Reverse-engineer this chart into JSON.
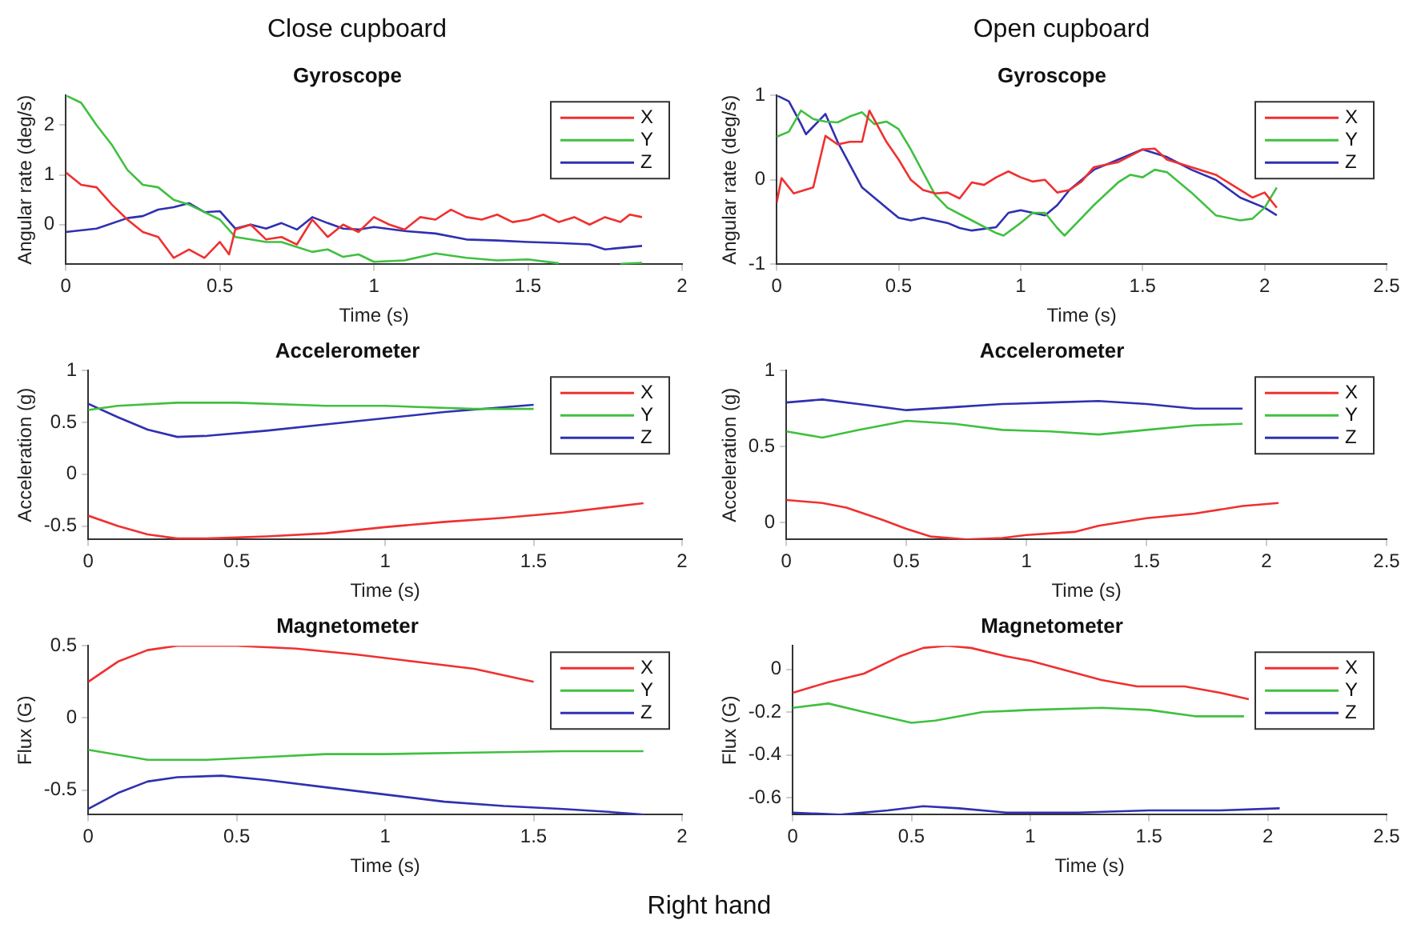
{
  "chart_data": [
    {
      "type": "line",
      "title": "Gyroscope",
      "xlabel": "Time (s)",
      "ylabel": "Angular rate (deg/s)",
      "annotations": [
        "Close cupboard"
      ],
      "xlim": [
        0,
        2
      ],
      "xticks": [
        0,
        0.5,
        1,
        1.5,
        2
      ],
      "ylim": [
        -0.8,
        2.6
      ],
      "yticks": [
        0,
        1,
        2
      ],
      "legend": "top right",
      "series": [
        {
          "name": "X",
          "color": "#f03030",
          "x": [
            0,
            0.05,
            0.1,
            0.15,
            0.2,
            0.25,
            0.3,
            0.35,
            0.4,
            0.45,
            0.5,
            0.53,
            0.55,
            0.6,
            0.65,
            0.7,
            0.75,
            0.8,
            0.85,
            0.9,
            0.95,
            1.0,
            1.05,
            1.1,
            1.15,
            1.2,
            1.25,
            1.3,
            1.35,
            1.4,
            1.45,
            1.5,
            1.55,
            1.6,
            1.65,
            1.7,
            1.75,
            1.8,
            1.83,
            1.87
          ],
          "values": [
            1.05,
            0.8,
            0.75,
            0.4,
            0.1,
            -0.15,
            -0.25,
            -0.67,
            -0.5,
            -0.67,
            -0.35,
            -0.6,
            -0.1,
            0,
            -0.3,
            -0.25,
            -0.4,
            0.1,
            -0.25,
            0,
            -0.15,
            0.15,
            0,
            -0.1,
            0.15,
            0.1,
            0.3,
            0.15,
            0.1,
            0.2,
            0.05,
            0.1,
            0.2,
            0.05,
            0.15,
            0,
            0.15,
            0.05,
            0.2,
            0.15
          ]
        },
        {
          "name": "Y",
          "color": "#40c040",
          "x": [
            0,
            0.05,
            0.1,
            0.15,
            0.2,
            0.25,
            0.3,
            0.35,
            0.4,
            0.45,
            0.5,
            0.55,
            0.6,
            0.65,
            0.7,
            0.75,
            0.8,
            0.85,
            0.9,
            0.95,
            1.0,
            1.1,
            1.2,
            1.3,
            1.4,
            1.5,
            1.6,
            1.7,
            1.8,
            1.87
          ],
          "values": [
            2.6,
            2.45,
            2.0,
            1.6,
            1.1,
            0.8,
            0.75,
            0.5,
            0.4,
            0.25,
            0.1,
            -0.25,
            -0.3,
            -0.35,
            -0.35,
            -0.45,
            -0.55,
            -0.5,
            -0.65,
            -0.6,
            -0.75,
            -0.72,
            -0.58,
            -0.67,
            -0.72,
            -0.7,
            -0.78,
            null,
            -0.79,
            -0.77
          ]
        },
        {
          "name": "Z",
          "color": "#3030b0",
          "x": [
            0,
            0.1,
            0.2,
            0.25,
            0.3,
            0.35,
            0.4,
            0.45,
            0.5,
            0.55,
            0.6,
            0.65,
            0.7,
            0.75,
            0.8,
            0.85,
            0.9,
            0.95,
            1.0,
            1.1,
            1.2,
            1.3,
            1.4,
            1.5,
            1.6,
            1.7,
            1.75,
            1.8,
            1.87
          ],
          "values": [
            -0.15,
            -0.08,
            0.13,
            0.17,
            0.3,
            0.35,
            0.43,
            0.25,
            0.27,
            -0.08,
            0,
            -0.08,
            0.03,
            -0.1,
            0.15,
            0.03,
            -0.08,
            -0.1,
            -0.05,
            -0.13,
            -0.18,
            -0.3,
            -0.32,
            -0.35,
            -0.37,
            -0.4,
            -0.5,
            -0.47,
            -0.43
          ]
        }
      ]
    },
    {
      "type": "line",
      "title": "Gyroscope",
      "xlabel": "Time (s)",
      "ylabel": "Angular rate (deg/s)",
      "annotations": [
        "Open cupboard"
      ],
      "xlim": [
        0,
        2.5
      ],
      "xticks": [
        0,
        0.5,
        1,
        1.5,
        2,
        2.5
      ],
      "ylim": [
        -1,
        1
      ],
      "yticks": [
        -1,
        0,
        1
      ],
      "legend": "top right",
      "series": [
        {
          "name": "X",
          "color": "#f03030",
          "x": [
            0,
            0.02,
            0.07,
            0.15,
            0.2,
            0.25,
            0.3,
            0.35,
            0.38,
            0.45,
            0.5,
            0.55,
            0.6,
            0.65,
            0.7,
            0.75,
            0.8,
            0.85,
            0.9,
            0.95,
            1.0,
            1.05,
            1.1,
            1.15,
            1.2,
            1.25,
            1.3,
            1.4,
            1.5,
            1.55,
            1.6,
            1.7,
            1.8,
            1.9,
            1.95,
            2.0,
            2.05
          ],
          "values": [
            -0.27,
            0.02,
            -0.16,
            -0.09,
            0.52,
            0.42,
            0.45,
            0.45,
            0.82,
            0.45,
            0.24,
            0,
            -0.12,
            -0.16,
            -0.15,
            -0.22,
            -0.03,
            -0.06,
            0.03,
            0.1,
            0.03,
            -0.02,
            0,
            -0.15,
            -0.12,
            -0.02,
            0.15,
            0.21,
            0.36,
            0.37,
            0.24,
            0.15,
            0.06,
            -0.12,
            -0.21,
            -0.15,
            -0.33
          ]
        },
        {
          "name": "Y",
          "color": "#40c040",
          "x": [
            0,
            0.05,
            0.1,
            0.15,
            0.2,
            0.25,
            0.3,
            0.35,
            0.4,
            0.45,
            0.5,
            0.55,
            0.6,
            0.65,
            0.7,
            0.8,
            0.9,
            0.93,
            1.0,
            1.05,
            1.1,
            1.15,
            1.18,
            1.25,
            1.3,
            1.4,
            1.45,
            1.5,
            1.55,
            1.6,
            1.7,
            1.8,
            1.9,
            1.95,
            2.0,
            2.05
          ],
          "values": [
            0.51,
            0.57,
            0.82,
            0.72,
            0.69,
            0.68,
            0.75,
            0.8,
            0.66,
            0.69,
            0.6,
            0.36,
            0.09,
            -0.18,
            -0.33,
            -0.48,
            -0.63,
            -0.66,
            -0.51,
            -0.39,
            -0.39,
            -0.57,
            -0.66,
            -0.45,
            -0.3,
            -0.03,
            0.06,
            0.03,
            0.12,
            0.09,
            -0.15,
            -0.42,
            -0.48,
            -0.46,
            -0.33,
            -0.09
          ]
        },
        {
          "name": "Z",
          "color": "#3030b0",
          "x": [
            0,
            0.05,
            0.1,
            0.12,
            0.15,
            0.2,
            0.25,
            0.3,
            0.35,
            0.4,
            0.45,
            0.5,
            0.55,
            0.6,
            0.7,
            0.75,
            0.8,
            0.9,
            0.95,
            1.0,
            1.1,
            1.15,
            1.2,
            1.3,
            1.4,
            1.5,
            1.6,
            1.7,
            1.8,
            1.9,
            2.0,
            2.05
          ],
          "values": [
            1.0,
            0.93,
            0.66,
            0.54,
            0.63,
            0.78,
            0.45,
            0.18,
            -0.09,
            -0.21,
            -0.33,
            -0.45,
            -0.48,
            -0.45,
            -0.51,
            -0.57,
            -0.6,
            -0.56,
            -0.39,
            -0.36,
            -0.42,
            -0.3,
            -0.12,
            0.12,
            0.24,
            0.36,
            0.27,
            0.12,
            0,
            -0.21,
            -0.33,
            -0.42
          ]
        }
      ]
    },
    {
      "type": "line",
      "title": "Accelerometer",
      "xlabel": "Time (s)",
      "ylabel": "Acceleration (g)",
      "xlim": [
        0,
        2
      ],
      "xticks": [
        0,
        0.5,
        1,
        1.5,
        2
      ],
      "ylim": [
        -0.63,
        1
      ],
      "yticks": [
        -0.5,
        0,
        0.5,
        1
      ],
      "legend": "top right",
      "series": [
        {
          "name": "X",
          "color": "#f03030",
          "x": [
            0,
            0.1,
            0.2,
            0.3,
            0.4,
            0.6,
            0.8,
            1.0,
            1.2,
            1.4,
            1.6,
            1.87
          ],
          "values": [
            -0.4,
            -0.5,
            -0.58,
            -0.62,
            -0.62,
            -0.6,
            -0.57,
            -0.51,
            -0.46,
            -0.42,
            -0.37,
            -0.28
          ]
        },
        {
          "name": "Y",
          "color": "#40c040",
          "x": [
            0,
            0.1,
            0.3,
            0.5,
            0.8,
            1.0,
            1.3,
            1.5
          ],
          "values": [
            0.62,
            0.66,
            0.69,
            0.69,
            0.66,
            0.66,
            0.63,
            0.63
          ]
        },
        {
          "name": "Z",
          "color": "#3030b0",
          "x": [
            0,
            0.1,
            0.2,
            0.3,
            0.4,
            0.6,
            0.8,
            1.0,
            1.2,
            1.5
          ],
          "values": [
            0.68,
            0.55,
            0.43,
            0.36,
            0.37,
            0.42,
            0.48,
            0.54,
            0.6,
            0.67
          ]
        }
      ]
    },
    {
      "type": "line",
      "title": "Accelerometer",
      "xlabel": "Time (s)",
      "ylabel": "Acceleration (g)",
      "xlim": [
        0,
        2.5
      ],
      "xticks": [
        0,
        0.5,
        1,
        1.5,
        2,
        2.5
      ],
      "ylim": [
        -0.11,
        1
      ],
      "yticks": [
        0,
        0.5,
        1
      ],
      "legend": "top right",
      "series": [
        {
          "name": "X",
          "color": "#f03030",
          "x": [
            0,
            0.15,
            0.25,
            0.4,
            0.5,
            0.6,
            0.75,
            0.9,
            1.0,
            1.2,
            1.3,
            1.5,
            1.7,
            1.9,
            2.05
          ],
          "values": [
            0.15,
            0.13,
            0.1,
            0.02,
            -0.04,
            -0.09,
            -0.11,
            -0.1,
            -0.08,
            -0.06,
            -0.02,
            0.03,
            0.06,
            0.11,
            0.13
          ]
        },
        {
          "name": "Y",
          "color": "#40c040",
          "x": [
            0,
            0.15,
            0.3,
            0.5,
            0.7,
            0.9,
            1.1,
            1.3,
            1.5,
            1.7,
            1.9
          ],
          "values": [
            0.6,
            0.56,
            0.61,
            0.67,
            0.65,
            0.61,
            0.6,
            0.58,
            0.61,
            0.64,
            0.65
          ]
        },
        {
          "name": "Z",
          "color": "#3030b0",
          "x": [
            0,
            0.15,
            0.3,
            0.5,
            0.7,
            0.9,
            1.1,
            1.3,
            1.5,
            1.7,
            1.9
          ],
          "values": [
            0.79,
            0.81,
            0.78,
            0.74,
            0.76,
            0.78,
            0.79,
            0.8,
            0.78,
            0.75,
            0.75
          ]
        }
      ]
    },
    {
      "type": "line",
      "title": "Magnetometer",
      "xlabel": "Time (s)",
      "ylabel": "Flux (G)",
      "annotations": [
        "Right hand"
      ],
      "xlim": [
        0,
        2
      ],
      "xticks": [
        0,
        0.5,
        1,
        1.5,
        2
      ],
      "ylim": [
        -0.67,
        0.5
      ],
      "yticks": [
        -0.5,
        0,
        0.5
      ],
      "legend": "top right",
      "series": [
        {
          "name": "X",
          "color": "#f03030",
          "x": [
            0,
            0.1,
            0.2,
            0.3,
            0.5,
            0.7,
            0.9,
            1.1,
            1.3,
            1.5
          ],
          "values": [
            0.25,
            0.39,
            0.47,
            0.5,
            0.5,
            0.48,
            0.44,
            0.39,
            0.34,
            0.25
          ]
        },
        {
          "name": "Y",
          "color": "#40c040",
          "x": [
            0,
            0.2,
            0.4,
            0.6,
            0.8,
            1.0,
            1.3,
            1.6,
            1.87
          ],
          "values": [
            -0.22,
            -0.29,
            -0.29,
            -0.27,
            -0.25,
            -0.25,
            -0.24,
            -0.23,
            -0.23
          ]
        },
        {
          "name": "Z",
          "color": "#3030b0",
          "x": [
            0,
            0.1,
            0.2,
            0.3,
            0.45,
            0.6,
            0.8,
            1.0,
            1.2,
            1.4,
            1.6,
            1.75,
            1.87
          ],
          "values": [
            -0.63,
            -0.52,
            -0.44,
            -0.41,
            -0.4,
            -0.43,
            -0.48,
            -0.53,
            -0.58,
            -0.61,
            -0.63,
            -0.65,
            -0.67
          ]
        }
      ]
    },
    {
      "type": "line",
      "title": "Magnetometer",
      "xlabel": "Time (s)",
      "ylabel": "Flux (G)",
      "xlim": [
        0,
        2.5
      ],
      "xticks": [
        0,
        0.5,
        1,
        1.5,
        2,
        2.5
      ],
      "ylim": [
        -0.68,
        0.11
      ],
      "yticks": [
        -0.6,
        -0.4,
        -0.2,
        0
      ],
      "legend": "top right",
      "series": [
        {
          "name": "X",
          "color": "#f03030",
          "x": [
            0,
            0.15,
            0.3,
            0.45,
            0.55,
            0.65,
            0.75,
            0.9,
            1.0,
            1.2,
            1.3,
            1.45,
            1.65,
            1.8,
            1.92
          ],
          "values": [
            -0.11,
            -0.06,
            -0.02,
            0.06,
            0.1,
            0.11,
            0.1,
            0.06,
            0.04,
            -0.02,
            -0.05,
            -0.08,
            -0.08,
            -0.11,
            -0.14
          ]
        },
        {
          "name": "Y",
          "color": "#40c040",
          "x": [
            0,
            0.15,
            0.3,
            0.5,
            0.6,
            0.8,
            1.0,
            1.3,
            1.5,
            1.7,
            1.9
          ],
          "values": [
            -0.18,
            -0.16,
            -0.2,
            -0.25,
            -0.24,
            -0.2,
            -0.19,
            -0.18,
            -0.19,
            -0.22,
            -0.22
          ]
        },
        {
          "name": "Z",
          "color": "#3030b0",
          "x": [
            0,
            0.2,
            0.4,
            0.55,
            0.7,
            0.9,
            1.2,
            1.5,
            1.8,
            2.05
          ],
          "values": [
            -0.67,
            -0.68,
            -0.66,
            -0.64,
            -0.65,
            -0.67,
            -0.67,
            -0.66,
            -0.66,
            -0.65
          ]
        }
      ]
    }
  ]
}
